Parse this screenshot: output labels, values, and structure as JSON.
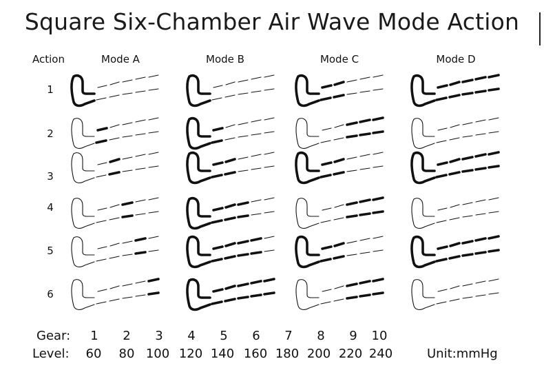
{
  "title": "Square Six-Chamber Air Wave Mode Action",
  "action_header": "Action",
  "modes": [
    "Mode A",
    "Mode B",
    "Mode C",
    "Mode D"
  ],
  "actions": [
    "1",
    "2",
    "3",
    "4",
    "5",
    "6"
  ],
  "chambers_inflated": {
    "Mode A": [
      [
        1
      ],
      [
        2
      ],
      [
        3
      ],
      [
        4
      ],
      [
        5
      ],
      [
        6
      ]
    ],
    "Mode B": [
      [
        1
      ],
      [
        1,
        2
      ],
      [
        1,
        2,
        3
      ],
      [
        1,
        2,
        3,
        4
      ],
      [
        1,
        2,
        3,
        4,
        5
      ],
      [
        1,
        2,
        3,
        4,
        5,
        6
      ]
    ],
    "Mode C": [
      [
        1,
        2,
        3
      ],
      [
        4,
        5,
        6
      ],
      [
        1,
        2,
        3
      ],
      [
        4,
        5,
        6
      ],
      [
        1,
        2,
        3
      ],
      [
        4,
        5,
        6
      ]
    ],
    "Mode D": [
      [
        1,
        2,
        3,
        4,
        5,
        6
      ],
      [],
      [
        1,
        2,
        3,
        4,
        5,
        6
      ],
      [],
      [
        1,
        2,
        3,
        4,
        5,
        6
      ],
      []
    ]
  },
  "gear_label": "Gear:",
  "level_label": "Level:",
  "gears": [
    "1",
    "2",
    "3",
    "4",
    "5",
    "6",
    "7",
    "8",
    "9",
    "10"
  ],
  "levels": [
    "60",
    "80",
    "100",
    "120",
    "140",
    "160",
    "180",
    "200",
    "220",
    "240"
  ],
  "unit": "Unit:mmHg",
  "colors": {
    "ink": "#111111",
    "background": "#ffffff"
  }
}
